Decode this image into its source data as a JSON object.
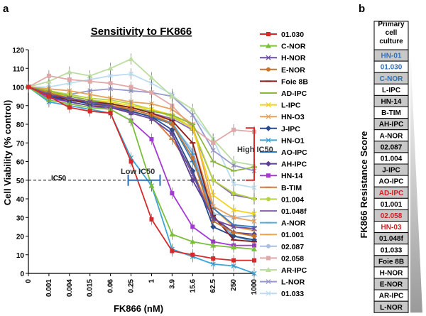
{
  "panel_a": "a",
  "panel_b": "b",
  "chart_data": [
    {
      "type": "line",
      "title": "Sensitivity to FK866",
      "xlabel": "FK866 (nM)",
      "ylabel": "Cell Viability (% control)",
      "categories": [
        "0",
        "0.001",
        "0.004",
        "0.015",
        "0.06",
        "0.25",
        "1",
        "3.9",
        "15.6",
        "62.5",
        "250",
        "1000"
      ],
      "ylim": [
        0,
        120
      ],
      "yticks": [
        0,
        10,
        20,
        30,
        40,
        50,
        60,
        70,
        80,
        90,
        100,
        110,
        120
      ],
      "grid": false,
      "legend": "right",
      "annotations": {
        "ic50_line": {
          "value": 50,
          "label": "IC50"
        },
        "low_ic50": "Low IC50",
        "high_ic50": "High IC50"
      },
      "series": [
        {
          "name": "01.030",
          "color": "#d42a2a",
          "marker": "square",
          "values": [
            100,
            95,
            89,
            87,
            86,
            60,
            29,
            12,
            10,
            8,
            7,
            7
          ]
        },
        {
          "name": "C-NOR",
          "color": "#7cbf3c",
          "marker": "triangle",
          "values": [
            100,
            93,
            91,
            89,
            88,
            82,
            47,
            21,
            17,
            15,
            14,
            13
          ]
        },
        {
          "name": "H-NOR",
          "color": "#6a4ea0",
          "marker": "x",
          "values": [
            100,
            96,
            94,
            92,
            90,
            86,
            83,
            75,
            53,
            29,
            25,
            24
          ]
        },
        {
          "name": "E-NOR",
          "color": "#c8742c",
          "marker": "circle",
          "values": [
            100,
            97,
            94,
            92,
            90,
            88,
            85,
            80,
            62,
            28,
            22,
            20
          ]
        },
        {
          "name": "Foie 8B",
          "color": "#8a1e1e",
          "marker": "dash",
          "values": [
            100,
            96,
            93,
            92,
            91,
            89,
            86,
            82,
            70,
            31,
            18,
            17
          ]
        },
        {
          "name": "AD-IPC",
          "color": "#8bb83a",
          "marker": "dash",
          "values": [
            100,
            98,
            95,
            93,
            91,
            89,
            87,
            85,
            80,
            60,
            55,
            57
          ]
        },
        {
          "name": "L-IPC",
          "color": "#f2d21a",
          "marker": "x",
          "values": [
            100,
            97,
            95,
            93,
            92,
            90,
            88,
            85,
            78,
            42,
            34,
            32
          ]
        },
        {
          "name": "HN-O3",
          "color": "#e8a15a",
          "marker": "x",
          "values": [
            100,
            99,
            98,
            96,
            94,
            92,
            91,
            88,
            80,
            36,
            30,
            28
          ]
        },
        {
          "name": "J-IPC",
          "color": "#274b8c",
          "marker": "diamond",
          "values": [
            100,
            95,
            93,
            91,
            90,
            87,
            84,
            77,
            55,
            25,
            20,
            18
          ]
        },
        {
          "name": "HN-O1",
          "color": "#3da4d8",
          "marker": "x",
          "values": [
            100,
            92,
            90,
            88,
            86,
            62,
            47,
            13,
            9,
            5,
            4,
            0
          ]
        },
        {
          "name": "AO-IPC",
          "color": "#2e7cc7",
          "marker": "dash",
          "values": [
            100,
            96,
            94,
            92,
            90,
            87,
            84,
            80,
            60,
            35,
            26,
            25
          ]
        },
        {
          "name": "AH-IPC",
          "color": "#5b3e93",
          "marker": "diamond",
          "values": [
            100,
            95,
            92,
            90,
            89,
            86,
            83,
            75,
            50,
            30,
            22,
            21
          ]
        },
        {
          "name": "HN-14",
          "color": "#a23ad3",
          "marker": "square",
          "values": [
            100,
            94,
            92,
            90,
            88,
            82,
            72,
            43,
            25,
            17,
            15,
            15
          ]
        },
        {
          "name": "B-TIM",
          "color": "#d67c3a",
          "marker": "dash",
          "values": [
            100,
            95,
            93,
            91,
            89,
            87,
            84,
            72,
            55,
            30,
            22,
            20
          ]
        },
        {
          "name": "01.004",
          "color": "#b5d445",
          "marker": "circle",
          "values": [
            100,
            98,
            96,
            94,
            93,
            91,
            88,
            84,
            78,
            50,
            43,
            40
          ]
        },
        {
          "name": "01.048f",
          "color": "#8c6ab2",
          "marker": "dash",
          "values": [
            100,
            97,
            95,
            93,
            91,
            89,
            86,
            83,
            77,
            50,
            42,
            40
          ]
        },
        {
          "name": "A-NOR",
          "color": "#5ba9d6",
          "marker": "dash",
          "values": [
            100,
            96,
            93,
            91,
            89,
            87,
            84,
            81,
            64,
            30,
            20,
            17
          ]
        },
        {
          "name": "01.001",
          "color": "#f3a447",
          "marker": "dash",
          "values": [
            100,
            97,
            95,
            93,
            91,
            88,
            85,
            82,
            70,
            35,
            25,
            23
          ]
        },
        {
          "name": "02.087",
          "color": "#a8bfe0",
          "marker": "circle",
          "values": [
            100,
            96,
            94,
            92,
            91,
            89,
            86,
            80,
            66,
            32,
            30,
            31
          ]
        },
        {
          "name": "02.058",
          "color": "#e0a9a9",
          "marker": "square",
          "values": [
            100,
            106,
            104,
            103,
            102,
            100,
            97,
            90,
            78,
            70,
            77,
            76
          ]
        },
        {
          "name": "AR-IPC",
          "color": "#bcdca2",
          "marker": "triangle",
          "values": [
            100,
            103,
            108,
            106,
            110,
            115,
            105,
            95,
            88,
            72,
            60,
            58
          ]
        },
        {
          "name": "L-NOR",
          "color": "#9898cc",
          "marker": "x",
          "values": [
            100,
            95,
            96,
            98,
            99,
            98,
            97,
            95,
            85,
            66,
            58,
            55
          ]
        },
        {
          "name": "01.033",
          "color": "#bcdcf0",
          "marker": "x",
          "values": [
            100,
            100,
            102,
            104,
            106,
            107,
            102,
            96,
            85,
            72,
            48,
            46
          ]
        }
      ]
    },
    {
      "type": "table",
      "header": [
        "Primary",
        "cell",
        "culture"
      ],
      "axis_label": "FK866 Resistance Score",
      "rows": [
        {
          "label": "HN-01",
          "color": "#2f6fb8",
          "bg": "#c8c8c8"
        },
        {
          "label": "01.030",
          "color": "#2f6fb8",
          "bg": "#ffffff"
        },
        {
          "label": "C-NOR",
          "color": "#2f6fb8",
          "bg": "#c8c8c8"
        },
        {
          "label": "L-IPC",
          "color": "#000000",
          "bg": "#ffffff"
        },
        {
          "label": "HN-14",
          "color": "#000000",
          "bg": "#c8c8c8"
        },
        {
          "label": "B-TIM",
          "color": "#000000",
          "bg": "#ffffff"
        },
        {
          "label": "AH-IPC",
          "color": "#000000",
          "bg": "#c8c8c8"
        },
        {
          "label": "A-NOR",
          "color": "#000000",
          "bg": "#ffffff"
        },
        {
          "label": "02.087",
          "color": "#000000",
          "bg": "#c8c8c8"
        },
        {
          "label": "01.004",
          "color": "#000000",
          "bg": "#ffffff"
        },
        {
          "label": "J-IPC",
          "color": "#000000",
          "bg": "#c8c8c8"
        },
        {
          "label": "AO-IPC",
          "color": "#000000",
          "bg": "#ffffff"
        },
        {
          "label": "AD-IPC",
          "color": "#d21e1e",
          "bg": "#c8c8c8"
        },
        {
          "label": "01.001",
          "color": "#000000",
          "bg": "#ffffff"
        },
        {
          "label": "02.058",
          "color": "#d21e1e",
          "bg": "#c8c8c8"
        },
        {
          "label": "HN-03",
          "color": "#d21e1e",
          "bg": "#ffffff"
        },
        {
          "label": "01.048f",
          "color": "#000000",
          "bg": "#c8c8c8"
        },
        {
          "label": "01.033",
          "color": "#000000",
          "bg": "#ffffff"
        },
        {
          "label": "Foie 8B",
          "color": "#000000",
          "bg": "#c8c8c8"
        },
        {
          "label": "H-NOR",
          "color": "#000000",
          "bg": "#ffffff"
        },
        {
          "label": "E-NOR",
          "color": "#000000",
          "bg": "#c8c8c8"
        },
        {
          "label": "AR-IPC",
          "color": "#000000",
          "bg": "#ffffff"
        },
        {
          "label": "L-NOR",
          "color": "#000000",
          "bg": "#c8c8c8"
        }
      ]
    }
  ]
}
